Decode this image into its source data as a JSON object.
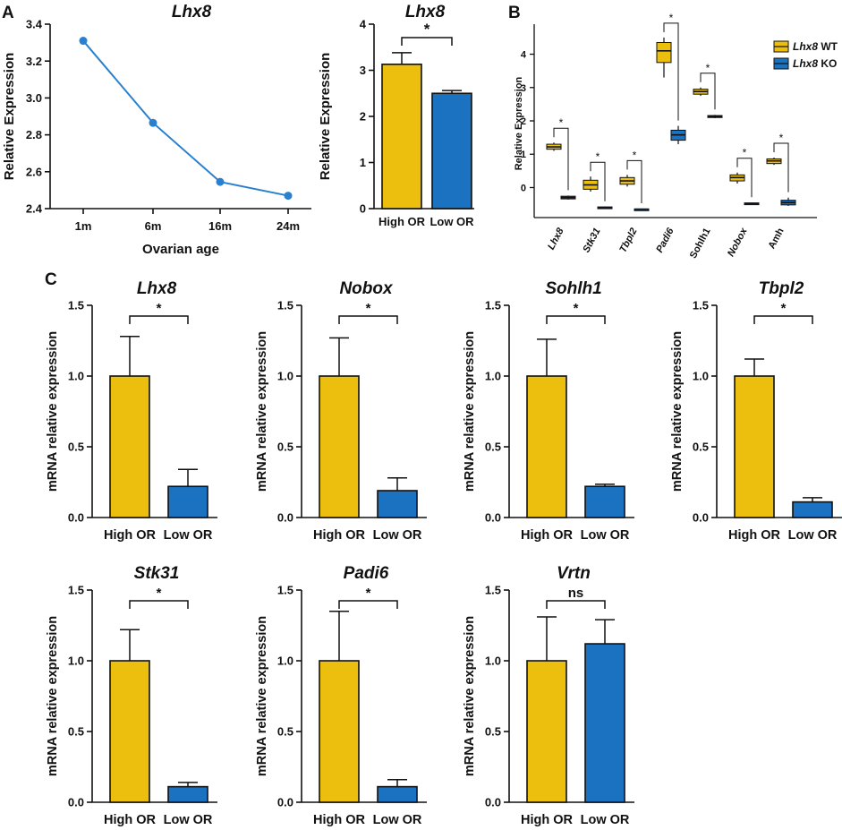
{
  "colors": {
    "high": "#ecbf0e",
    "low": "#1b72c1",
    "line": "#2a80cf",
    "axis": "#111111"
  },
  "panels": {
    "A": "A",
    "B": "B",
    "C": "C"
  },
  "chart_data": [
    {
      "id": "A1",
      "type": "line",
      "title": "Lhx8",
      "xlabel": "Ovarian age",
      "ylabel": "Relative Expression",
      "categories": [
        "1m",
        "6m",
        "16m",
        "24m"
      ],
      "values": [
        3.31,
        2.865,
        2.545,
        2.47
      ],
      "ylim": [
        2.4,
        3.4
      ],
      "yticks": [
        "2.4",
        "2.6",
        "2.8",
        "3.0",
        "3.2",
        "3.4"
      ]
    },
    {
      "id": "A2",
      "type": "bar",
      "title": "Lhx8",
      "ylabel": "Relative Expression",
      "categories": [
        "High OR",
        "Low OR"
      ],
      "values": [
        3.13,
        2.5
      ],
      "errors": [
        0.25,
        0.06
      ],
      "ylim": [
        0,
        4
      ],
      "yticks": [
        "0",
        "1",
        "2",
        "3",
        "4"
      ],
      "significance": "*"
    },
    {
      "id": "B",
      "type": "box",
      "ylabel": "Relative Expression",
      "genes": [
        "Lhx8",
        "Stk31",
        "Tbpl2",
        "Padi6",
        "Sohlh1",
        "Nobox",
        "Amh"
      ],
      "ylim": [
        -0.9,
        4.9
      ],
      "yticks": [
        "0",
        "1",
        "2",
        "3",
        "4"
      ],
      "legend": [
        {
          "gene": "Lhx8",
          "suffix": "WT"
        },
        {
          "gene": "Lhx8",
          "suffix": "KO"
        }
      ],
      "series": [
        {
          "name": "WT",
          "boxes": [
            {
              "min": 1.1,
              "q1": 1.15,
              "median": 1.22,
              "q3": 1.3,
              "max": 1.35
            },
            {
              "min": -0.12,
              "q1": -0.05,
              "median": 0.08,
              "q3": 0.22,
              "max": 0.33
            },
            {
              "min": 0.03,
              "q1": 0.1,
              "median": 0.2,
              "q3": 0.3,
              "max": 0.38
            },
            {
              "min": 3.3,
              "q1": 3.75,
              "median": 4.1,
              "q3": 4.35,
              "max": 4.5
            },
            {
              "min": 2.75,
              "q1": 2.8,
              "median": 2.88,
              "q3": 2.95,
              "max": 3.0
            },
            {
              "min": 0.12,
              "q1": 0.2,
              "median": 0.3,
              "q3": 0.38,
              "max": 0.45
            },
            {
              "min": 0.68,
              "q1": 0.72,
              "median": 0.8,
              "q3": 0.86,
              "max": 0.9
            }
          ]
        },
        {
          "name": "KO",
          "boxes": [
            {
              "min": -0.36,
              "q1": -0.34,
              "median": -0.3,
              "q3": -0.26,
              "max": -0.24
            },
            {
              "min": -0.63,
              "q1": -0.61,
              "median": -0.6,
              "q3": -0.58,
              "max": -0.57
            },
            {
              "min": -0.67,
              "q1": -0.66,
              "median": -0.65,
              "q3": -0.64,
              "max": -0.63
            },
            {
              "min": 1.3,
              "q1": 1.42,
              "median": 1.58,
              "q3": 1.72,
              "max": 1.85
            },
            {
              "min": 2.08,
              "q1": 2.1,
              "median": 2.13,
              "q3": 2.16,
              "max": 2.18
            },
            {
              "min": -0.5,
              "q1": -0.49,
              "median": -0.48,
              "q3": -0.46,
              "max": -0.45
            },
            {
              "min": -0.55,
              "q1": -0.52,
              "median": -0.45,
              "q3": -0.38,
              "max": -0.3
            }
          ]
        }
      ],
      "significance": [
        "*",
        "*",
        "*",
        "*",
        "*",
        "*",
        "*"
      ]
    },
    {
      "id": "C1",
      "type": "bar",
      "title": "Lhx8",
      "ylabel": "mRNA relative expression",
      "categories": [
        "High OR",
        "Low OR"
      ],
      "values": [
        1.0,
        0.22
      ],
      "errors": [
        0.28,
        0.12
      ],
      "ylim": [
        0,
        1.5
      ],
      "yticks": [
        "0.0",
        "0.5",
        "1.0",
        "1.5"
      ],
      "significance": "*"
    },
    {
      "id": "C2",
      "type": "bar",
      "title": "Nobox",
      "ylabel": "mRNA relative expression",
      "categories": [
        "High OR",
        "Low OR"
      ],
      "values": [
        1.0,
        0.19
      ],
      "errors": [
        0.27,
        0.09
      ],
      "ylim": [
        0,
        1.5
      ],
      "yticks": [
        "0.0",
        "0.5",
        "1.0",
        "1.5"
      ],
      "significance": "*"
    },
    {
      "id": "C3",
      "type": "bar",
      "title": "Sohlh1",
      "ylabel": "mRNA relative expression",
      "categories": [
        "High OR",
        "Low OR"
      ],
      "values": [
        1.0,
        0.22
      ],
      "errors": [
        0.26,
        0.015
      ],
      "ylim": [
        0,
        1.5
      ],
      "yticks": [
        "0.0",
        "0.5",
        "1.0",
        "1.5"
      ],
      "significance": "*"
    },
    {
      "id": "C4",
      "type": "bar",
      "title": "Tbpl2",
      "ylabel": "mRNA relative expression",
      "categories": [
        "High OR",
        "Low OR"
      ],
      "values": [
        1.0,
        0.11
      ],
      "errors": [
        0.12,
        0.03
      ],
      "ylim": [
        0,
        1.5
      ],
      "yticks": [
        "0.0",
        "0.5",
        "1.0",
        "1.5"
      ],
      "significance": "*"
    },
    {
      "id": "C5",
      "type": "bar",
      "title": "Stk31",
      "ylabel": "mRNA relative expression",
      "categories": [
        "High OR",
        "Low OR"
      ],
      "values": [
        1.0,
        0.11
      ],
      "errors": [
        0.22,
        0.03
      ],
      "ylim": [
        0,
        1.5
      ],
      "yticks": [
        "0.0",
        "0.5",
        "1.0",
        "1.5"
      ],
      "significance": "*"
    },
    {
      "id": "C6",
      "type": "bar",
      "title": "Padi6",
      "ylabel": "mRNA relative expression",
      "categories": [
        "High OR",
        "Low OR"
      ],
      "values": [
        1.0,
        0.11
      ],
      "errors": [
        0.35,
        0.05
      ],
      "ylim": [
        0,
        1.5
      ],
      "yticks": [
        "0.0",
        "0.5",
        "1.0",
        "1.5"
      ],
      "significance": "*"
    },
    {
      "id": "C7",
      "type": "bar",
      "title": "Vrtn",
      "ylabel": "mRNA relative expression",
      "categories": [
        "High OR",
        "Low OR"
      ],
      "values": [
        1.0,
        1.12
      ],
      "errors": [
        0.31,
        0.17
      ],
      "ylim": [
        0,
        1.5
      ],
      "yticks": [
        "0.0",
        "0.5",
        "1.0",
        "1.5"
      ],
      "significance": "ns"
    }
  ]
}
